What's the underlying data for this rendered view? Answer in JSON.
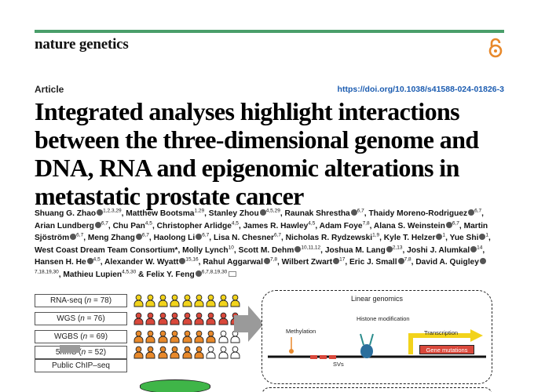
{
  "journal": {
    "name": "nature genetics",
    "open_access_icon": "open-access-lock-icon",
    "accent_color": "#4a9e6a"
  },
  "article": {
    "type_label": "Article",
    "doi": "https://doi.org/10.1038/s41588-024-01826-3",
    "title_lines": [
      "Integrated analyses highlight interactions",
      "between the three-dimensional genome and",
      "DNA, RNA and epigenomic alterations in",
      "metastatic prostate cancer"
    ]
  },
  "authors": [
    {
      "name": "Shuang G. Zhao",
      "aff": "1,2,3,29",
      "orcid": true
    },
    {
      "name": "Matthew Bootsma",
      "aff": "1,29",
      "orcid": false
    },
    {
      "name": "Stanley Zhou",
      "aff": "4,5,29",
      "orcid": true
    },
    {
      "name": "Raunak Shrestha",
      "aff": "6,7",
      "orcid": true
    },
    {
      "name": "Thaidy Moreno-Rodriguez",
      "aff": "6,7",
      "orcid": true
    },
    {
      "name": "Arian Lundberg",
      "aff": "6,7",
      "orcid": true
    },
    {
      "name": "Chu Pan",
      "aff": "4,5",
      "orcid": false
    },
    {
      "name": "Christopher Arlidge",
      "aff": "4,5",
      "orcid": false
    },
    {
      "name": "James R. Hawley",
      "aff": "4,5",
      "orcid": false
    },
    {
      "name": "Adam Foye",
      "aff": "7,8",
      "orcid": false
    },
    {
      "name": "Alana S. Weinstein",
      "aff": "6,7",
      "orcid": true
    },
    {
      "name": "Martin Sjöström",
      "aff": "6,7",
      "orcid": true
    },
    {
      "name": "Meng Zhang",
      "aff": "6,7",
      "orcid": true
    },
    {
      "name": "Haolong Li",
      "aff": "6,7",
      "orcid": true
    },
    {
      "name": "Lisa N. Chesner",
      "aff": "6,7",
      "orcid": false
    },
    {
      "name": "Nicholas R. Rydzewski",
      "aff": "1,9",
      "orcid": false
    },
    {
      "name": "Kyle T. Helzer",
      "aff": "1",
      "orcid": true
    },
    {
      "name": "Yue Shi",
      "aff": "1",
      "orcid": true
    },
    {
      "name": "West Coast Dream Team Consortium*",
      "aff": "",
      "orcid": false
    },
    {
      "name": "Molly Lynch",
      "aff": "10",
      "orcid": false
    },
    {
      "name": "Scott M. Dehm",
      "aff": "10,11,12",
      "orcid": true
    },
    {
      "name": "Joshua M. Lang",
      "aff": "2,13",
      "orcid": true
    },
    {
      "name": "Joshi J. Alumkal",
      "aff": "14",
      "orcid": true
    },
    {
      "name": "Hansen H. He",
      "aff": "4,5",
      "orcid": true
    },
    {
      "name": "Alexander W. Wyatt",
      "aff": "15,16",
      "orcid": true
    },
    {
      "name": "Rahul Aggarwal",
      "aff": "7,8",
      "orcid": true
    },
    {
      "name": "Wilbert Zwart",
      "aff": "17",
      "orcid": true
    },
    {
      "name": "Eric J. Small",
      "aff": "7,8",
      "orcid": true
    },
    {
      "name": "David A. Quigley",
      "aff": "7,18,19,30",
      "orcid": true
    },
    {
      "name": "Mathieu Lupien",
      "aff": "4,5,30",
      "orcid": false
    },
    {
      "name": "Felix Y. Feng",
      "aff": "6,7,8,19,30",
      "orcid": true,
      "corresponding": true
    }
  ],
  "figure": {
    "cohorts": [
      {
        "label": "RNA-seq",
        "n": "78",
        "colors": [
          "#f2d31b",
          "#f2d31b",
          "#f2d31b",
          "#f2d31b",
          "#f2d31b",
          "#f2d31b",
          "#f2d31b",
          "#f2d31b",
          "#f2d31b"
        ]
      },
      {
        "label": "WGS",
        "n": "76",
        "colors": [
          "#d9483b",
          "#d9483b",
          "#d9483b",
          "#d9483b",
          "#d9483b",
          "#d9483b",
          "#d9483b",
          "#d9483b",
          "#d9483b"
        ]
      },
      {
        "label": "WGBS",
        "n": "69",
        "colors": [
          "#e8892b",
          "#e8892b",
          "#e8892b",
          "#e8892b",
          "#e8892b",
          "#e8892b",
          "#e8892b",
          "#ffffff",
          "#ffffff"
        ]
      },
      {
        "label": "5hmC",
        "n": "52",
        "colors": [
          "#e8892b",
          "#e8892b",
          "#e8892b",
          "#e8892b",
          "#e8892b",
          "#e8892b",
          "#ffffff",
          "#ffffff",
          "#ffffff"
        ]
      }
    ],
    "extra_label": "Public ChIP–seq",
    "panel_title": "Linear genomics",
    "labels": {
      "methylation": "Methylation",
      "histone": "Histone modification",
      "transcription": "Transcription",
      "gene_mutations": "Gene mutations",
      "svs": "SVs"
    },
    "colors": {
      "orange": "#e8892b",
      "red": "#d9483b",
      "yellow": "#f2d31b",
      "green": "#3fb548",
      "teal": "#2a8c8c"
    }
  }
}
